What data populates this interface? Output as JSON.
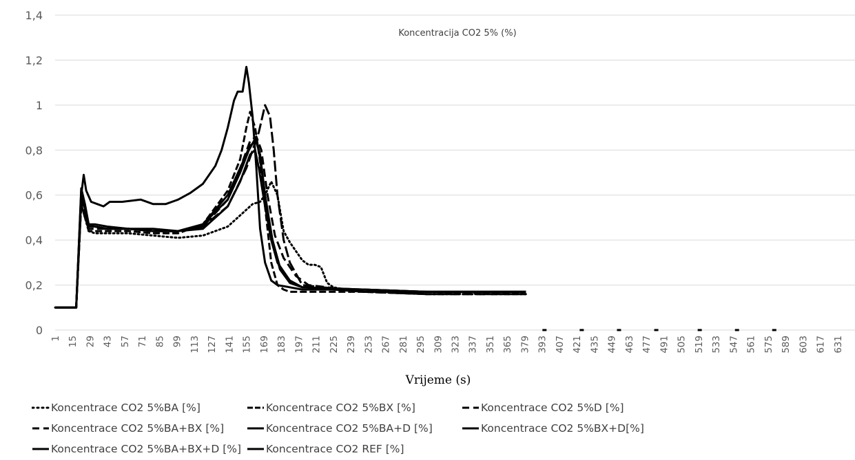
{
  "chart_data": {
    "type": "line",
    "title": "Koncentracija CO2 5% (%)",
    "xlabel": "Vrijeme (s)",
    "ylabel": "",
    "ylim": [
      0,
      1.4
    ],
    "yticks": [
      "0",
      "0,2",
      "0,4",
      "0,6",
      "0,8",
      "1",
      "1,2",
      "1,4"
    ],
    "xlim": [
      1,
      645
    ],
    "xticks": [
      "1",
      "15",
      "29",
      "43",
      "57",
      "71",
      "85",
      "99",
      "113",
      "127",
      "141",
      "155",
      "169",
      "183",
      "197",
      "211",
      "225",
      "239",
      "253",
      "267",
      "281",
      "295",
      "309",
      "323",
      "337",
      "351",
      "365",
      "379",
      "393",
      "407",
      "421",
      "435",
      "449",
      "463",
      "477",
      "491",
      "505",
      "519",
      "533",
      "547",
      "561",
      "575",
      "589",
      "603",
      "617",
      "631"
    ],
    "grid": "horizontal",
    "legend_position": "bottom",
    "series": [
      {
        "name": "Koncentrace CO2 5%BA [%]",
        "style": "dot",
        "x": [
          1,
          18,
          22,
          25,
          28,
          33,
          43,
          60,
          80,
          100,
          120,
          140,
          150,
          160,
          166,
          170,
          175,
          180,
          185,
          190,
          200,
          205,
          210,
          215,
          220,
          225,
          235,
          250,
          300,
          350,
          380
        ],
        "y": [
          0.1,
          0.1,
          0.56,
          0.5,
          0.44,
          0.43,
          0.43,
          0.43,
          0.42,
          0.41,
          0.42,
          0.46,
          0.51,
          0.56,
          0.57,
          0.6,
          0.66,
          0.6,
          0.44,
          0.39,
          0.31,
          0.29,
          0.29,
          0.28,
          0.21,
          0.19,
          0.18,
          0.17,
          0.16,
          0.16,
          0.16
        ]
      },
      {
        "name": "Koncentrace CO2 5%BX [%]",
        "style": "dash",
        "x": [
          1,
          18,
          22,
          25,
          28,
          33,
          43,
          60,
          80,
          100,
          120,
          140,
          150,
          155,
          158,
          162,
          166,
          170,
          175,
          180,
          185,
          190,
          200,
          250,
          300,
          380
        ],
        "y": [
          0.1,
          0.1,
          0.57,
          0.51,
          0.44,
          0.44,
          0.44,
          0.44,
          0.43,
          0.43,
          0.47,
          0.62,
          0.76,
          0.9,
          0.97,
          0.9,
          0.75,
          0.55,
          0.3,
          0.2,
          0.18,
          0.17,
          0.17,
          0.17,
          0.17,
          0.16
        ]
      },
      {
        "name": "Koncentrace CO2 5%D [%]",
        "style": "longdash",
        "x": [
          1,
          18,
          22,
          25,
          28,
          33,
          43,
          60,
          80,
          100,
          120,
          140,
          155,
          165,
          170,
          174,
          177,
          180,
          185,
          190,
          200,
          250,
          300,
          380
        ],
        "y": [
          0.1,
          0.1,
          0.56,
          0.5,
          0.45,
          0.45,
          0.45,
          0.45,
          0.44,
          0.44,
          0.46,
          0.55,
          0.72,
          0.88,
          1.0,
          0.95,
          0.8,
          0.6,
          0.4,
          0.3,
          0.2,
          0.17,
          0.16,
          0.16
        ]
      },
      {
        "name": "Koncentrace CO2 5%BA+BX [%]",
        "style": "dashdot",
        "x": [
          1,
          18,
          22,
          25,
          28,
          33,
          43,
          60,
          80,
          100,
          120,
          140,
          150,
          158,
          163,
          167,
          172,
          178,
          185,
          195,
          205,
          250,
          300,
          380
        ],
        "y": [
          0.1,
          0.1,
          0.6,
          0.52,
          0.46,
          0.46,
          0.45,
          0.45,
          0.44,
          0.44,
          0.46,
          0.58,
          0.72,
          0.84,
          0.86,
          0.8,
          0.6,
          0.42,
          0.32,
          0.24,
          0.2,
          0.17,
          0.16,
          0.16
        ]
      },
      {
        "name": "Koncentrace CO2 5%BA+D [%]",
        "style": "solid",
        "x": [
          1,
          18,
          22,
          25,
          28,
          33,
          43,
          60,
          80,
          100,
          120,
          140,
          150,
          158,
          162,
          165,
          170,
          175,
          180,
          190,
          200,
          250,
          300,
          380
        ],
        "y": [
          0.1,
          0.1,
          0.62,
          0.55,
          0.47,
          0.46,
          0.45,
          0.45,
          0.44,
          0.44,
          0.45,
          0.55,
          0.66,
          0.78,
          0.8,
          0.72,
          0.55,
          0.4,
          0.3,
          0.22,
          0.19,
          0.17,
          0.17,
          0.17
        ]
      },
      {
        "name": "Koncentrace CO2 5%BX+D[%]",
        "style": "solid",
        "x": [
          1,
          18,
          22,
          25,
          28,
          33,
          43,
          60,
          80,
          100,
          120,
          140,
          150,
          158,
          163,
          166,
          170,
          176,
          182,
          190,
          200,
          250,
          300,
          380
        ],
        "y": [
          0.1,
          0.1,
          0.63,
          0.56,
          0.47,
          0.47,
          0.46,
          0.45,
          0.45,
          0.44,
          0.47,
          0.6,
          0.72,
          0.82,
          0.84,
          0.78,
          0.6,
          0.4,
          0.27,
          0.21,
          0.19,
          0.18,
          0.17,
          0.17
        ]
      },
      {
        "name": "Koncentrace CO2 5%BA+BX+D [%]",
        "style": "solid",
        "x": [
          1,
          18,
          22,
          25,
          28,
          33,
          43,
          60,
          80,
          100,
          120,
          140,
          150,
          157,
          162,
          165,
          170,
          175,
          182,
          190,
          200,
          250,
          300,
          380
        ],
        "y": [
          0.1,
          0.1,
          0.6,
          0.54,
          0.46,
          0.46,
          0.45,
          0.45,
          0.44,
          0.44,
          0.47,
          0.58,
          0.7,
          0.8,
          0.85,
          0.8,
          0.6,
          0.42,
          0.28,
          0.21,
          0.19,
          0.18,
          0.17,
          0.17
        ]
      },
      {
        "name": "Koncentrace CO2 REF [%]",
        "style": "solid",
        "x": [
          1,
          18,
          22,
          24,
          26,
          30,
          35,
          40,
          45,
          55,
          70,
          80,
          90,
          100,
          110,
          120,
          130,
          135,
          140,
          145,
          148,
          152,
          155,
          157,
          160,
          163,
          166,
          170,
          175,
          180,
          190,
          200,
          220,
          250,
          300,
          350,
          380
        ],
        "y": [
          0.1,
          0.1,
          0.6,
          0.69,
          0.62,
          0.57,
          0.56,
          0.55,
          0.57,
          0.57,
          0.58,
          0.56,
          0.56,
          0.58,
          0.61,
          0.65,
          0.73,
          0.8,
          0.9,
          1.02,
          1.06,
          1.06,
          1.17,
          1.1,
          0.95,
          0.72,
          0.45,
          0.3,
          0.22,
          0.2,
          0.19,
          0.18,
          0.18,
          0.18,
          0.17,
          0.17,
          0.17
        ]
      }
    ],
    "dash_marks_x": [
      395,
      425,
      455,
      485,
      520,
      550,
      580
    ]
  }
}
